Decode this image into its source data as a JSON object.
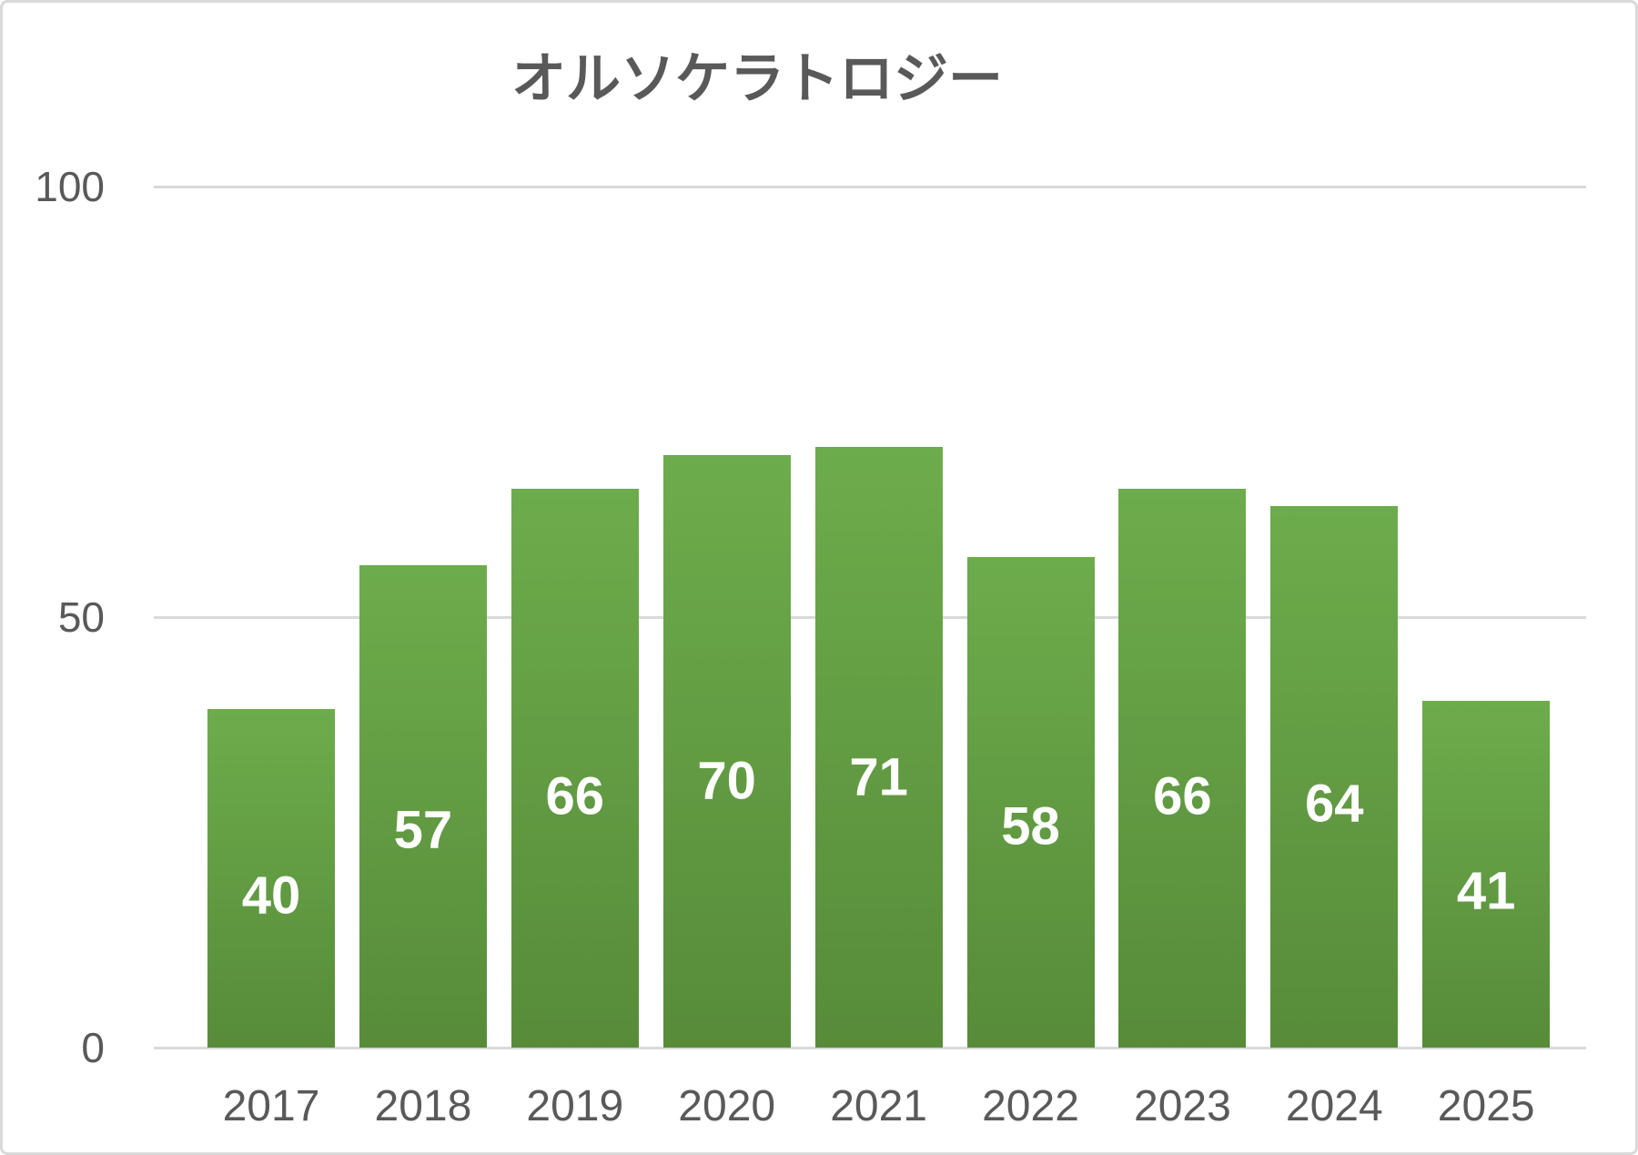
{
  "chart_data": {
    "type": "bar",
    "title": "オルソケラトロジー",
    "categories": [
      "2017",
      "2018",
      "2019",
      "2020",
      "2021",
      "2022",
      "2023",
      "2024",
      "2025"
    ],
    "values": [
      40,
      57,
      66,
      70,
      71,
      58,
      66,
      64,
      41
    ],
    "xlabel": "",
    "ylabel": "",
    "ylim": [
      0,
      100
    ],
    "yticks": [
      0,
      50,
      100
    ],
    "grid": "horizontal",
    "legend": "none",
    "colors": {
      "bar_gradient_top": "#6dac4c",
      "bar_gradient_bottom": "#578b39",
      "gridline": "#d9d9d9",
      "axis_text": "#595959",
      "title_text": "#595959",
      "value_label_text": "#ffffff",
      "canvas_border": "#d9d9d9",
      "background": "#ffffff"
    }
  }
}
